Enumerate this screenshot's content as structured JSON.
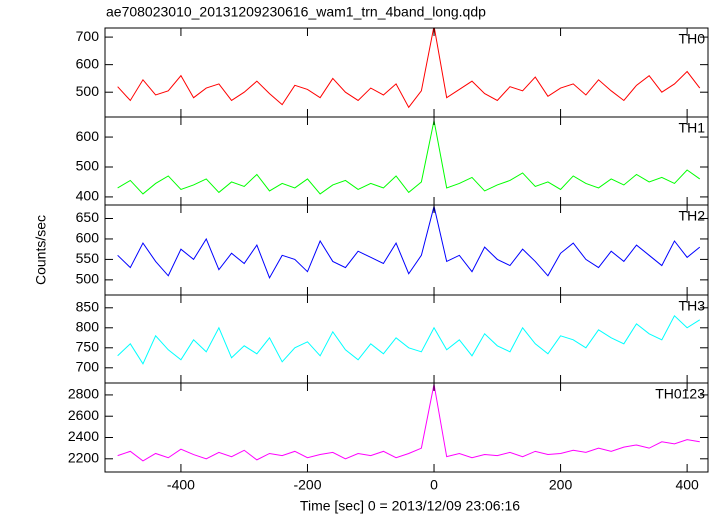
{
  "chart_data": [
    {
      "type": "line",
      "title": "ae708023010_20131209230616_wam1_trn_4band_long.qdp",
      "x": [
        -500,
        -480,
        -460,
        -440,
        -420,
        -400,
        -380,
        -360,
        -340,
        -320,
        -300,
        -280,
        -260,
        -240,
        -220,
        -200,
        -180,
        -160,
        -140,
        -120,
        -100,
        -80,
        -60,
        -40,
        -20,
        0,
        20,
        40,
        60,
        80,
        100,
        120,
        140,
        160,
        180,
        200,
        220,
        240,
        260,
        280,
        300,
        320,
        340,
        360,
        380,
        400,
        420
      ],
      "xlim": [
        -520,
        433
      ],
      "xticks": [
        -400,
        -200,
        0,
        200,
        400
      ],
      "series": [
        {
          "name": "TH0",
          "color": "#ff0000",
          "values": [
            520,
            470,
            545,
            490,
            505,
            560,
            480,
            515,
            530,
            470,
            500,
            540,
            495,
            455,
            525,
            510,
            480,
            550,
            500,
            470,
            515,
            490,
            530,
            445,
            505,
            740,
            480,
            510,
            540,
            495,
            470,
            520,
            505,
            555,
            485,
            515,
            530,
            490,
            545,
            505,
            470,
            525,
            560,
            500,
            530,
            575,
            515
          ]
        }
      ],
      "ylim": [
        410,
        733
      ],
      "yticks": [
        500,
        600,
        700
      ]
    },
    {
      "type": "line",
      "x": [
        -500,
        -480,
        -460,
        -440,
        -420,
        -400,
        -380,
        -360,
        -340,
        -320,
        -300,
        -280,
        -260,
        -240,
        -220,
        -200,
        -180,
        -160,
        -140,
        -120,
        -100,
        -80,
        -60,
        -40,
        -20,
        0,
        20,
        40,
        60,
        80,
        100,
        120,
        140,
        160,
        180,
        200,
        220,
        240,
        260,
        280,
        300,
        320,
        340,
        360,
        380,
        400,
        420
      ],
      "xlim": [
        -520,
        433
      ],
      "xticks": [
        -400,
        -200,
        0,
        200,
        400
      ],
      "series": [
        {
          "name": "TH1",
          "color": "#00ff00",
          "values": [
            430,
            455,
            410,
            445,
            470,
            425,
            440,
            460,
            415,
            450,
            435,
            475,
            420,
            445,
            430,
            460,
            410,
            440,
            455,
            425,
            445,
            430,
            470,
            415,
            450,
            655,
            430,
            445,
            465,
            420,
            440,
            455,
            480,
            435,
            450,
            425,
            470,
            445,
            430,
            460,
            440,
            475,
            450,
            465,
            445,
            490,
            460
          ]
        }
      ],
      "ylim": [
        373,
        667
      ],
      "yticks": [
        400,
        500,
        600
      ]
    },
    {
      "type": "line",
      "y_label": "Counts/sec",
      "x": [
        -500,
        -480,
        -460,
        -440,
        -420,
        -400,
        -380,
        -360,
        -340,
        -320,
        -300,
        -280,
        -260,
        -240,
        -220,
        -200,
        -180,
        -160,
        -140,
        -120,
        -100,
        -80,
        -60,
        -40,
        -20,
        0,
        20,
        40,
        60,
        80,
        100,
        120,
        140,
        160,
        180,
        200,
        220,
        240,
        260,
        280,
        300,
        320,
        340,
        360,
        380,
        400,
        420
      ],
      "xlim": [
        -520,
        433
      ],
      "xticks": [
        -400,
        -200,
        0,
        200,
        400
      ],
      "series": [
        {
          "name": "TH2",
          "color": "#0000ff",
          "values": [
            560,
            530,
            590,
            545,
            510,
            575,
            550,
            600,
            525,
            565,
            540,
            585,
            505,
            560,
            550,
            520,
            595,
            545,
            530,
            570,
            555,
            540,
            590,
            515,
            560,
            680,
            545,
            560,
            520,
            580,
            550,
            535,
            575,
            545,
            510,
            565,
            590,
            550,
            530,
            570,
            545,
            585,
            560,
            535,
            595,
            555,
            580
          ]
        }
      ],
      "ylim": [
        463,
        683
      ],
      "yticks": [
        500,
        550,
        600,
        650
      ]
    },
    {
      "type": "line",
      "x": [
        -500,
        -480,
        -460,
        -440,
        -420,
        -400,
        -380,
        -360,
        -340,
        -320,
        -300,
        -280,
        -260,
        -240,
        -220,
        -200,
        -180,
        -160,
        -140,
        -120,
        -100,
        -80,
        -60,
        -40,
        -20,
        0,
        20,
        40,
        60,
        80,
        100,
        120,
        140,
        160,
        180,
        200,
        220,
        240,
        260,
        280,
        300,
        320,
        340,
        360,
        380,
        400,
        420
      ],
      "xlim": [
        -520,
        433
      ],
      "xticks": [
        -400,
        -200,
        0,
        200,
        400
      ],
      "series": [
        {
          "name": "TH3",
          "color": "#00ffff",
          "values": [
            730,
            760,
            710,
            780,
            745,
            720,
            770,
            740,
            800,
            725,
            755,
            735,
            775,
            715,
            750,
            765,
            730,
            790,
            745,
            720,
            760,
            735,
            775,
            750,
            740,
            800,
            745,
            770,
            730,
            785,
            755,
            740,
            800,
            760,
            735,
            780,
            770,
            750,
            795,
            775,
            760,
            810,
            785,
            770,
            830,
            800,
            820
          ]
        }
      ],
      "ylim": [
        662,
        882
      ],
      "yticks": [
        700,
        750,
        800,
        850
      ]
    },
    {
      "type": "line",
      "x_label": "Time [sec] 0 = 2013/12/09 23:06:16",
      "x": [
        -500,
        -480,
        -460,
        -440,
        -420,
        -400,
        -380,
        -360,
        -340,
        -320,
        -300,
        -280,
        -260,
        -240,
        -220,
        -200,
        -180,
        -160,
        -140,
        -120,
        -100,
        -80,
        -60,
        -40,
        -20,
        0,
        20,
        40,
        60,
        80,
        100,
        120,
        140,
        160,
        180,
        200,
        220,
        240,
        260,
        280,
        300,
        320,
        340,
        360,
        380,
        400,
        420
      ],
      "xlim": [
        -520,
        433
      ],
      "xticks": [
        -400,
        -200,
        0,
        200,
        400
      ],
      "series": [
        {
          "name": "TH0123",
          "color": "#ff00ff",
          "values": [
            2230,
            2270,
            2180,
            2250,
            2210,
            2290,
            2240,
            2200,
            2260,
            2220,
            2280,
            2190,
            2250,
            2230,
            2270,
            2210,
            2240,
            2260,
            2200,
            2250,
            2230,
            2270,
            2210,
            2250,
            2300,
            2900,
            2220,
            2250,
            2210,
            2240,
            2230,
            2260,
            2220,
            2270,
            2240,
            2250,
            2280,
            2260,
            2300,
            2270,
            2310,
            2330,
            2300,
            2360,
            2340,
            2380,
            2360
          ]
        }
      ],
      "ylim": [
        2076,
        2912
      ],
      "yticks": [
        2200,
        2400,
        2600,
        2800
      ]
    }
  ]
}
